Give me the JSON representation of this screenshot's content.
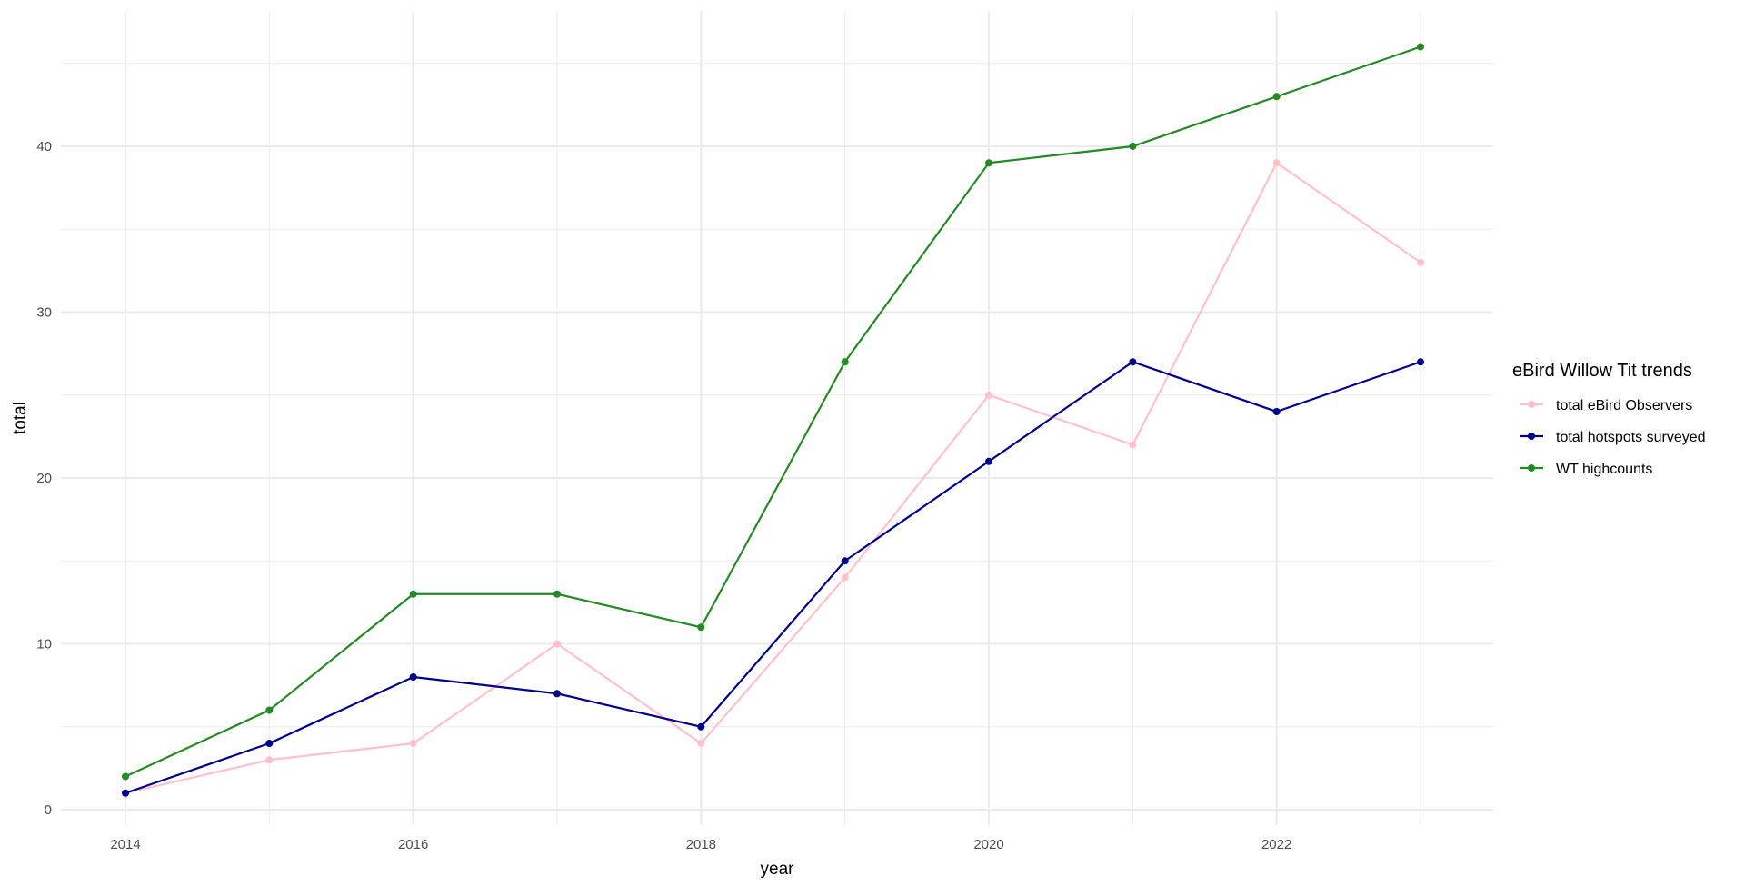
{
  "chart_data": {
    "type": "line",
    "title": "",
    "xlabel": "year",
    "ylabel": "total",
    "x": [
      2014,
      2015,
      2016,
      2017,
      2018,
      2019,
      2020,
      2021,
      2022,
      2023
    ],
    "x_ticks": [
      "2014",
      "2016",
      "2018",
      "2020",
      "2022"
    ],
    "y_ticks": [
      "0",
      "10",
      "20",
      "30",
      "40"
    ],
    "ylim": [
      0,
      46
    ],
    "grid": true,
    "legend_title": "eBird Willow Tit trends",
    "legend_position": "right",
    "series": [
      {
        "name": "total eBird Observers",
        "color": "#FFC0CB",
        "values": [
          1,
          3,
          4,
          10,
          4,
          14,
          25,
          22,
          39,
          33
        ]
      },
      {
        "name": "total hotspots surveyed",
        "color": "#00008B",
        "values": [
          1,
          4,
          8,
          7,
          5,
          15,
          21,
          27,
          24,
          27
        ]
      },
      {
        "name": "WT highcounts",
        "color": "#228B22",
        "values": [
          2,
          6,
          13,
          13,
          11,
          27,
          39,
          40,
          43,
          46
        ]
      }
    ]
  }
}
